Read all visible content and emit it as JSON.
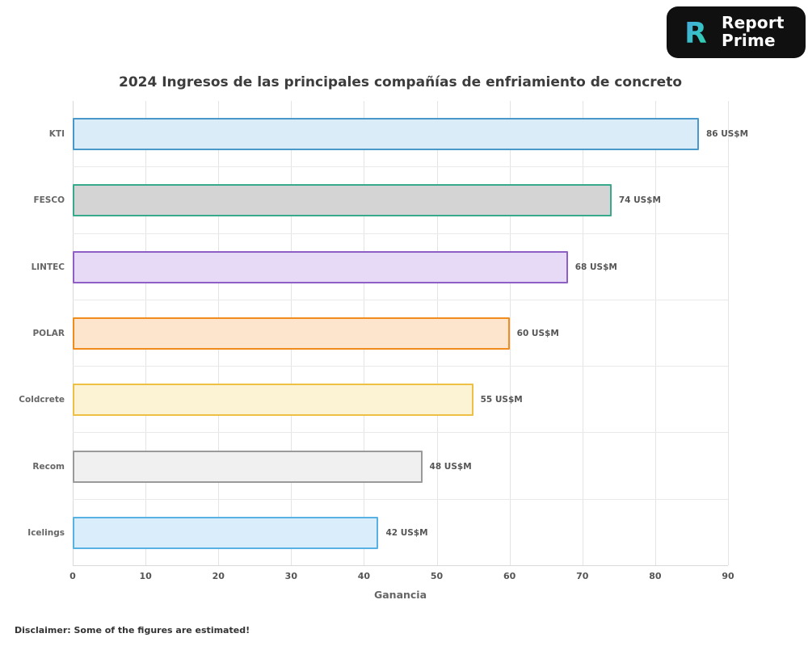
{
  "logo": {
    "line1": "Report",
    "line2": "Prime",
    "mark": "report-prime-monogram",
    "bg_color": "#101010",
    "gradient_start": "#4ba3e3",
    "gradient_end": "#2ed3a3"
  },
  "chart_data": {
    "type": "bar",
    "orientation": "horizontal",
    "title": "2024 Ingresos de las principales compañías de enfriamiento de concreto",
    "xlabel": "Ganancia",
    "ylabel": "",
    "xlim": [
      0,
      90
    ],
    "xticks": [
      0,
      10,
      20,
      30,
      40,
      50,
      60,
      70,
      80,
      90
    ],
    "grid": true,
    "legend": false,
    "categories": [
      "KTI",
      "FESCO",
      "LINTEC",
      "POLAR",
      "Coldcrete",
      "Recom",
      "Icelings"
    ],
    "values": [
      86,
      74,
      68,
      60,
      55,
      48,
      42
    ],
    "unit": "US$M",
    "value_labels": [
      "86 US$M",
      "74 US$M",
      "68 US$M",
      "60 US$M",
      "55 US$M",
      "48 US$M",
      "42 US$M"
    ],
    "bar_styles": [
      {
        "fill": "#d9ecf8",
        "border": "#4a98c9"
      },
      {
        "fill": "#d4d4d4",
        "border": "#37a98c"
      },
      {
        "fill": "#e7daf6",
        "border": "#8e5fc4"
      },
      {
        "fill": "#fde4cc",
        "border": "#f08c1e"
      },
      {
        "fill": "#fcf3d4",
        "border": "#edbf45"
      },
      {
        "fill": "#f0f0f0",
        "border": "#9a9a9a"
      },
      {
        "fill": "#d9edfa",
        "border": "#57b1e3"
      }
    ]
  },
  "disclaimer": "Disclaimer: Some of the figures are estimated!"
}
